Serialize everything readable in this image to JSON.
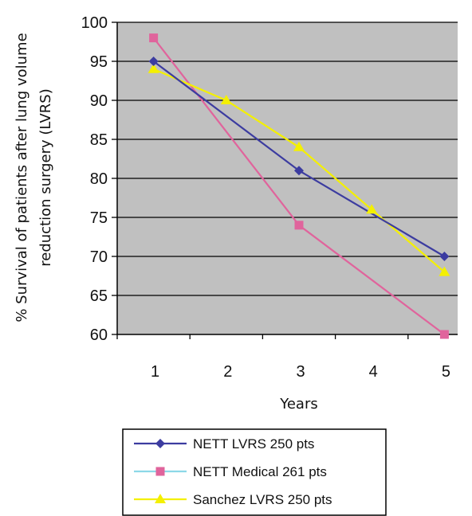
{
  "chart_data": {
    "type": "line",
    "xlabel": "Years",
    "ylabel_lines": [
      "% Survival of patients after lung volume",
      "reduction surgery (LVRS)"
    ],
    "ylim": [
      60,
      100
    ],
    "yticks": [
      60,
      65,
      70,
      75,
      80,
      85,
      90,
      95,
      100
    ],
    "xlim": [
      0.5,
      5.5
    ],
    "xticks": [
      1,
      2,
      3,
      4,
      5
    ],
    "grid": "horizontal",
    "plot_background": "#c0c0c0",
    "legend_position": "bottom",
    "series": [
      {
        "name": "NETT LVRS 250 pts",
        "color": "#3c3ca0",
        "marker": "diamond",
        "points": [
          {
            "x": 1,
            "y": 95
          },
          {
            "x": 3,
            "y": 81
          },
          {
            "x": 5,
            "y": 70
          }
        ]
      },
      {
        "name": "NETT Medical 261 pts",
        "color": "#e0649c",
        "legend_line_color": "#8cd8e8",
        "marker": "square",
        "points": [
          {
            "x": 1,
            "y": 98
          },
          {
            "x": 3,
            "y": 74
          },
          {
            "x": 5,
            "y": 60
          }
        ]
      },
      {
        "name": "Sanchez LVRS 250 pts",
        "color": "#f4f000",
        "marker": "triangle",
        "points": [
          {
            "x": 1,
            "y": 94
          },
          {
            "x": 2,
            "y": 90
          },
          {
            "x": 3,
            "y": 84
          },
          {
            "x": 4,
            "y": 76
          },
          {
            "x": 5,
            "y": 68
          }
        ]
      }
    ]
  }
}
